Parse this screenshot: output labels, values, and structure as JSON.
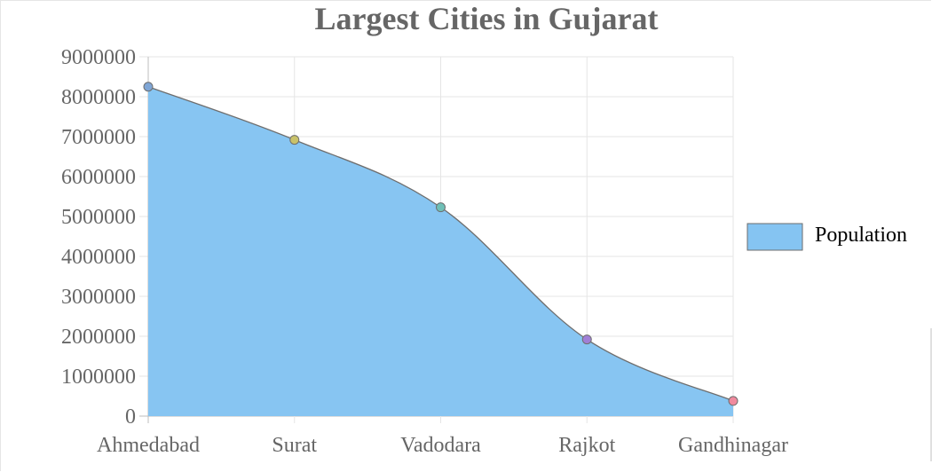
{
  "chart_data": {
    "type": "area",
    "title": "Largest Cities in Gujarat",
    "categories": [
      "Ahmedabad",
      "Surat",
      "Vadodara",
      "Rajkot",
      "Gandhinagar"
    ],
    "series": [
      {
        "name": "Population",
        "values": [
          8250000,
          6920000,
          5230000,
          1920000,
          380000
        ],
        "fill_color": "#85C4F2",
        "line_color": "#6E6E6E",
        "point_colors": [
          "#7FA6D6",
          "#C9C26A",
          "#6FBFB6",
          "#A07FD6",
          "#F08A9E"
        ]
      }
    ],
    "y_ticks": [
      "0",
      "1000000",
      "2000000",
      "3000000",
      "4000000",
      "5000000",
      "6000000",
      "7000000",
      "8000000",
      "9000000"
    ],
    "ylim": [
      0,
      9000000
    ],
    "grid": true,
    "legend_position": "right",
    "xlabel": "",
    "ylabel": ""
  }
}
